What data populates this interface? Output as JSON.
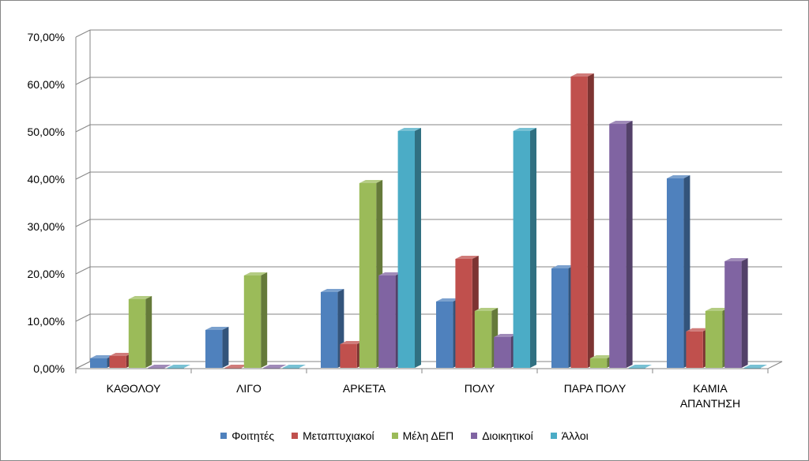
{
  "chart_data": {
    "type": "bar",
    "categories": [
      "ΚΑΘΟΛΟΥ",
      "ΛΙΓΟ",
      "ΑΡΚΕΤΑ",
      "ΠΟΛΥ",
      "ΠΑΡΑ ΠΟΛΥ",
      "ΚΑΜΙΑ ΑΠΑΝΤΗΣΗ"
    ],
    "category_lines": [
      [
        "ΚΑΘΟΛΟΥ"
      ],
      [
        "ΛΙΓΟ"
      ],
      [
        "ΑΡΚΕΤΑ"
      ],
      [
        "ΠΟΛΥ"
      ],
      [
        "ΠΑΡΑ ΠΟΛΥ"
      ],
      [
        "ΚΑΜΙΑ",
        "ΑΠΑΝΤΗΣΗ"
      ]
    ],
    "series": [
      {
        "name": "Φοιτητές",
        "color": "#4F81BD",
        "values": [
          2,
          8,
          16,
          14,
          21,
          40
        ]
      },
      {
        "name": "Μεταπτυχιακοί",
        "color": "#C0504D",
        "values": [
          2.5,
          0,
          5,
          23,
          61.5,
          7.7
        ]
      },
      {
        "name": "Μέλη ΔΕΠ",
        "color": "#9BBB59",
        "values": [
          14.5,
          19.5,
          39,
          12,
          2,
          12
        ]
      },
      {
        "name": "Διοικητικοί",
        "color": "#8064A2",
        "values": [
          0,
          0,
          19.5,
          6.5,
          51.5,
          22.5
        ]
      },
      {
        "name": "Άλλοι",
        "color": "#4BACC6",
        "values": [
          0,
          0,
          50,
          50,
          0,
          0
        ]
      }
    ],
    "yticks": [
      "0,00%",
      "10,00%",
      "20,00%",
      "30,00%",
      "40,00%",
      "50,00%",
      "60,00%",
      "70,00%"
    ],
    "ylim": [
      0,
      70
    ],
    "grid": true,
    "legend_position": "bottom",
    "title": "",
    "xlabel": "",
    "ylabel": ""
  }
}
